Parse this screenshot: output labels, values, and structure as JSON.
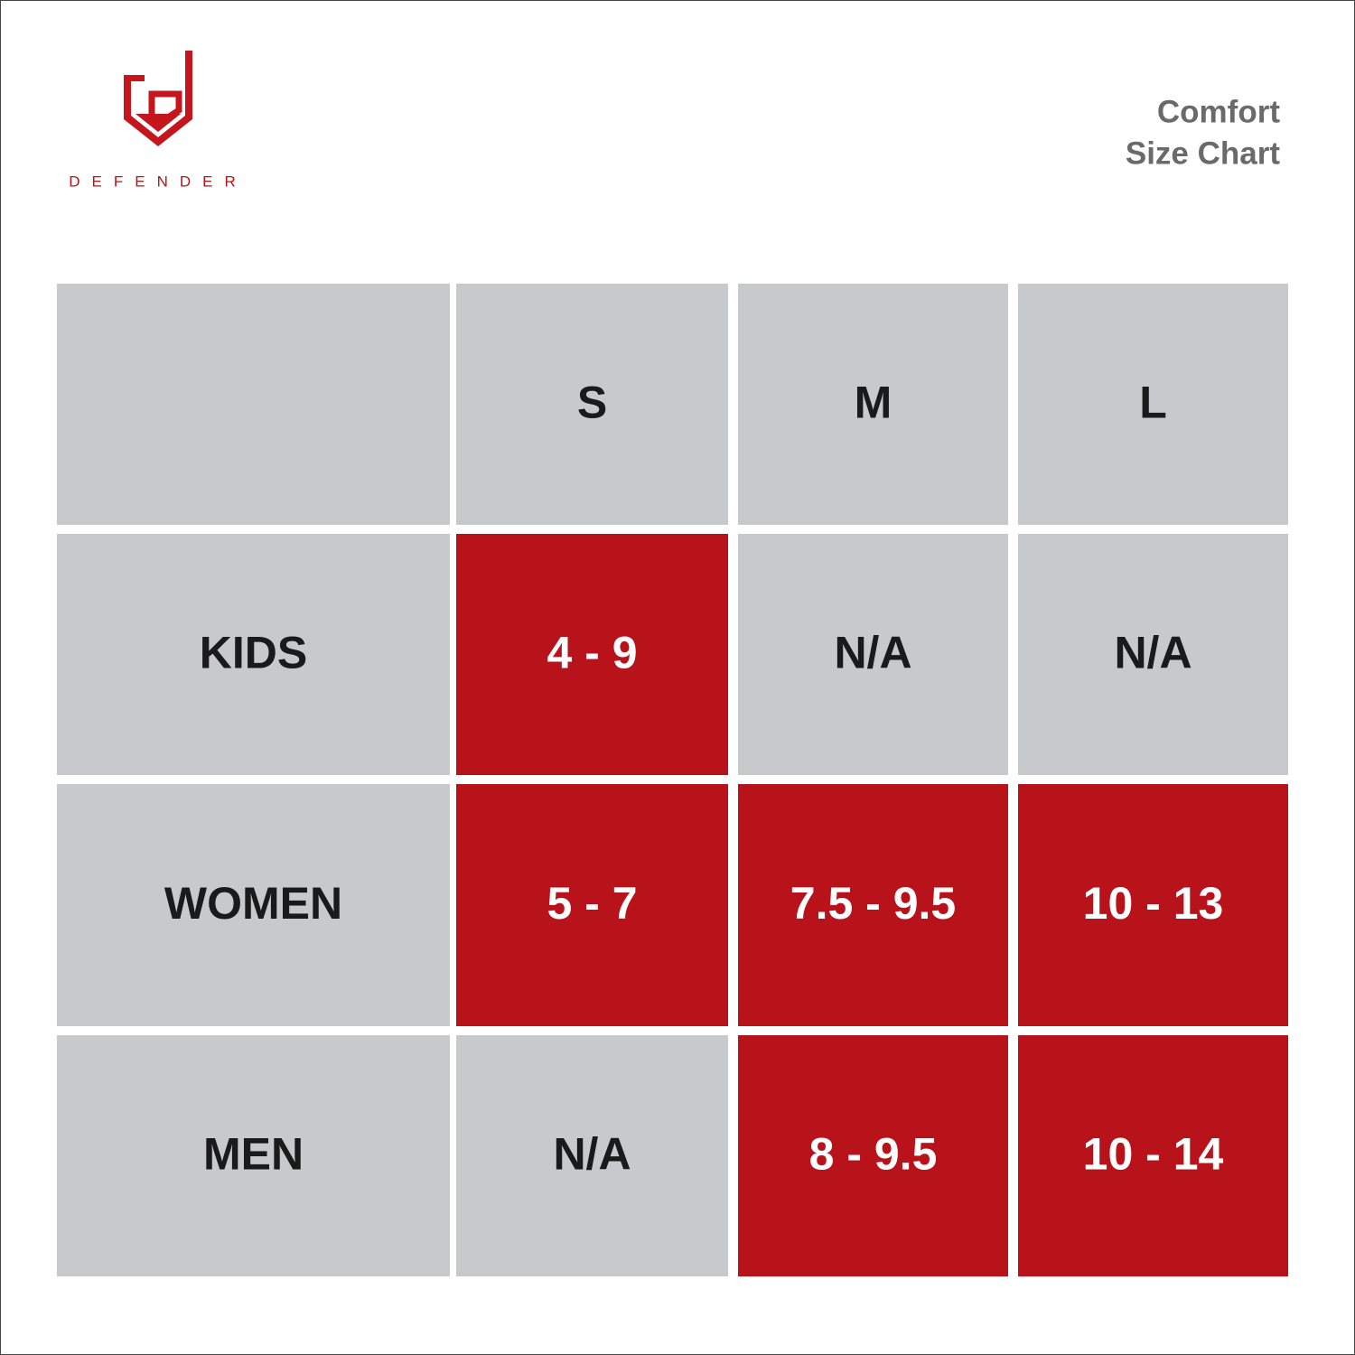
{
  "brand": "DEFENDER",
  "title": [
    "Comfort",
    "Size Chart"
  ],
  "table": {
    "columns": [
      "S",
      "M",
      "L"
    ],
    "rows": [
      {
        "label": "KIDS",
        "cells": [
          {
            "text": "4 - 9",
            "highlight": true
          },
          {
            "text": "N/A",
            "highlight": false
          },
          {
            "text": "N/A",
            "highlight": false
          }
        ]
      },
      {
        "label": "WOMEN",
        "cells": [
          {
            "text": "5 - 7",
            "highlight": true
          },
          {
            "text": "7.5 - 9.5",
            "highlight": true
          },
          {
            "text": "10 - 13",
            "highlight": true
          }
        ]
      },
      {
        "label": "MEN",
        "cells": [
          {
            "text": "N/A",
            "highlight": false
          },
          {
            "text": "8 - 9.5",
            "highlight": true
          },
          {
            "text": "10 - 14",
            "highlight": true
          }
        ]
      }
    ]
  }
}
